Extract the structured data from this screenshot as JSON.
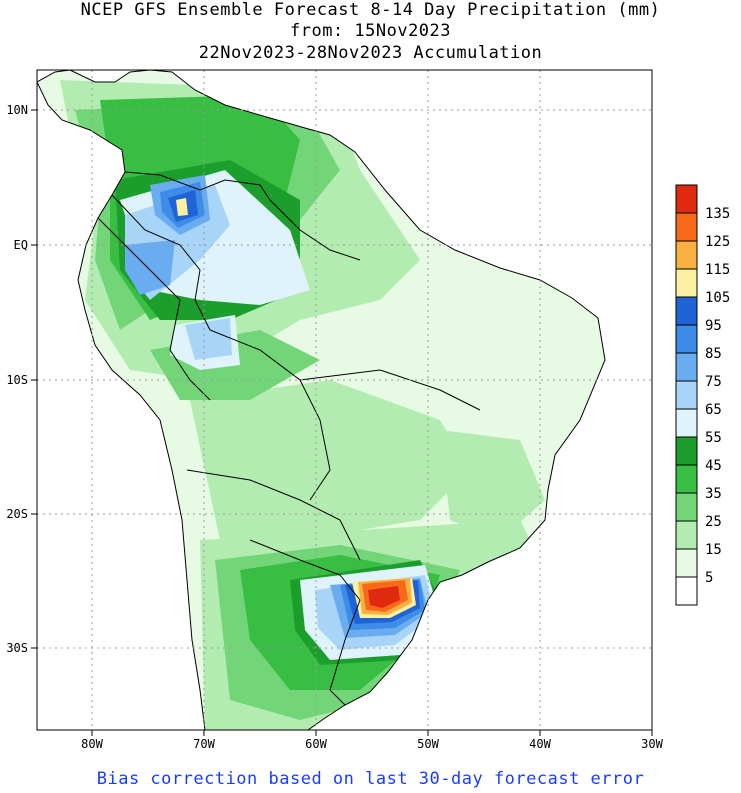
{
  "title": {
    "line1": "NCEP GFS Ensemble Forecast 8-14 Day Precipitation (mm)",
    "line2": "from: 15Nov2023",
    "line3": "22Nov2023-28Nov2023 Accumulation"
  },
  "footer": "Bias correction based on last 30-day forecast error",
  "axes": {
    "lon_labels": [
      "80W",
      "70W",
      "60W",
      "50W",
      "40W",
      "30W"
    ],
    "lat_labels": [
      "10N",
      "EQ",
      "10S",
      "20S",
      "30S"
    ]
  },
  "legend": {
    "labels": [
      "135",
      "125",
      "115",
      "105",
      "95",
      "85",
      "75",
      "65",
      "55",
      "45",
      "35",
      "25",
      "15",
      "5"
    ],
    "colors": [
      "#e02a10",
      "#f86a1a",
      "#f8b040",
      "#fbf0a0",
      "#1e64d6",
      "#3c8ce8",
      "#6aacf0",
      "#a8d4f8",
      "#def4fa",
      "#1c9e2c",
      "#38be42",
      "#72d678",
      "#b2ecb0",
      "#e6fae4",
      "#ffffff"
    ]
  },
  "colors": {
    "ocean": "#ffffff",
    "land_base": "#e6fae4",
    "border": "#000000",
    "grid": "#9a9a9a",
    "footer_text": "#1a3cff"
  }
}
